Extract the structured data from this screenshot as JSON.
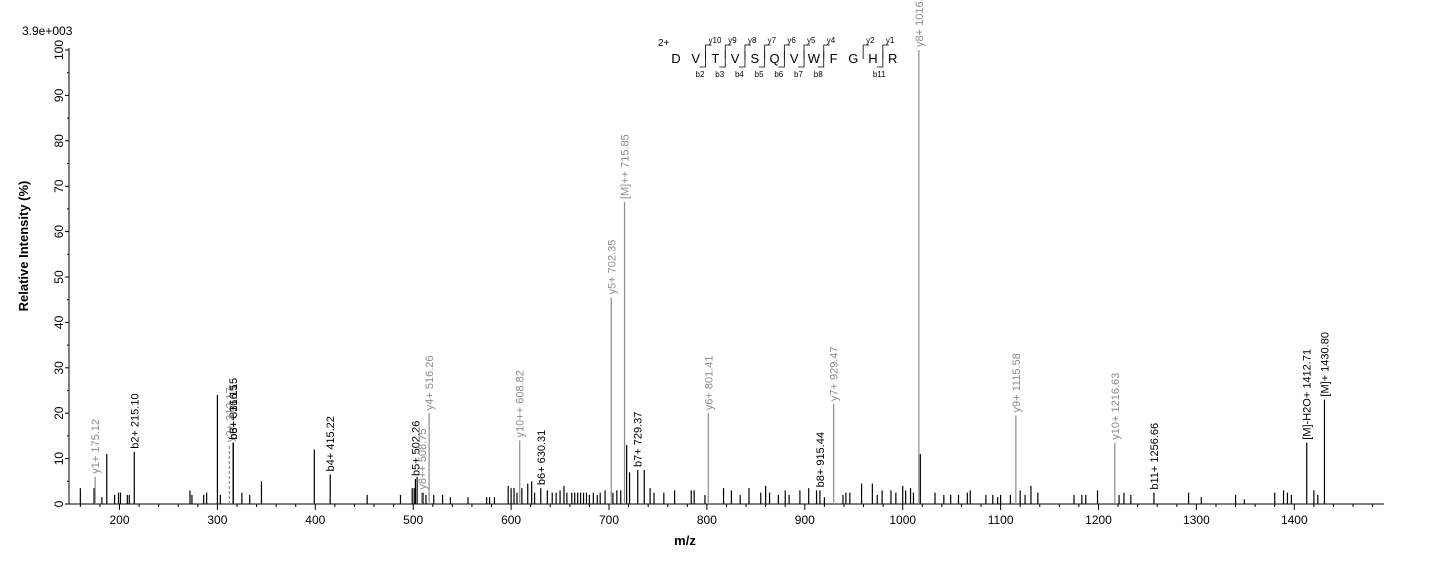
{
  "chart_data": {
    "type": "bar",
    "scale_label": "3.9e+003",
    "xlabel": "m/z",
    "ylabel": "Relative   Intensity (%)",
    "xlim": [
      155,
      1485
    ],
    "ylim": [
      0,
      100
    ],
    "x_ticks": [
      200,
      300,
      400,
      500,
      600,
      700,
      800,
      900,
      1000,
      1100,
      1200,
      1300,
      1400
    ],
    "y_ticks": [
      0,
      10,
      20,
      30,
      40,
      50,
      60,
      70,
      80,
      90,
      100
    ],
    "annotated_peaks": [
      {
        "x": 175.12,
        "y": 6.0,
        "label": "y1+ 175.12",
        "color": "#8c8c8c"
      },
      {
        "x": 215.1,
        "y": 11.5,
        "label": "b2+ 215.10",
        "color": "#000000"
      },
      {
        "x": 316.15,
        "y": 13.5,
        "label": "b3+ 316.15",
        "color": "#000000"
      },
      {
        "x": 312.17,
        "y": 13.0,
        "label": "y2+ 312.17...",
        "color": "#8c8c8c"
      },
      {
        "x": 316.15,
        "y": 13.5,
        "label": "b6++ 316.15",
        "color": "#000000"
      },
      {
        "x": 415.22,
        "y": 6.5,
        "label": "b4+ 415.22",
        "color": "#000000"
      },
      {
        "x": 502.26,
        "y": 5.5,
        "label": "b5+ 502.26",
        "color": "#000000"
      },
      {
        "x": 508.75,
        "y": 2.5,
        "label": "y8++ 508.75",
        "color": "#8c8c8c"
      },
      {
        "x": 516.26,
        "y": 20.0,
        "label": "y4+ 516.26",
        "color": "#8c8c8c"
      },
      {
        "x": 608.82,
        "y": 14.0,
        "label": "y10++ 608.82",
        "color": "#8c8c8c"
      },
      {
        "x": 630.31,
        "y": 3.5,
        "label": "b6+ 630.31",
        "color": "#000000"
      },
      {
        "x": 702.35,
        "y": 45.5,
        "label": "y5+ 702.35",
        "color": "#8c8c8c"
      },
      {
        "x": 715.85,
        "y": 66.5,
        "label": "[M]++ 715.85",
        "color": "#8c8c8c"
      },
      {
        "x": 729.37,
        "y": 7.5,
        "label": "b7+ 729.37",
        "color": "#000000"
      },
      {
        "x": 801.41,
        "y": 20.0,
        "label": "y6+ 801.41",
        "color": "#8c8c8c"
      },
      {
        "x": 915.44,
        "y": 3.0,
        "label": "b8+ 915.44",
        "color": "#000000"
      },
      {
        "x": 929.47,
        "y": 22.0,
        "label": "y7+ 929.47",
        "color": "#8c8c8c"
      },
      {
        "x": 1016.51,
        "y": 100.0,
        "label": "y8+ 1016.51",
        "color": "#8c8c8c"
      },
      {
        "x": 1115.58,
        "y": 19.5,
        "label": "y9+ 1115.58",
        "color": "#8c8c8c"
      },
      {
        "x": 1216.63,
        "y": 13.5,
        "label": "y10+ 1216.63",
        "color": "#8c8c8c"
      },
      {
        "x": 1256.66,
        "y": 2.5,
        "label": "b11+ 1256.66",
        "color": "#000000"
      },
      {
        "x": 1412.71,
        "y": 13.5,
        "label": "[M]-H2O+ 1412.71",
        "color": "#000000"
      },
      {
        "x": 1430.8,
        "y": 23.0,
        "label": "[M]+ 1430.80",
        "color": "#000000"
      }
    ],
    "unlabeled_peaks": [
      [
        160,
        3.5
      ],
      [
        174,
        3.5
      ],
      [
        182,
        1.5
      ],
      [
        187,
        11
      ],
      [
        195,
        2
      ],
      [
        199,
        2.5
      ],
      [
        201,
        2.5
      ],
      [
        208,
        2
      ],
      [
        210,
        2
      ],
      [
        272,
        3
      ],
      [
        274,
        2
      ],
      [
        286,
        2
      ],
      [
        289,
        2.5
      ],
      [
        300,
        24
      ],
      [
        303,
        2
      ],
      [
        325,
        2.5
      ],
      [
        333,
        2
      ],
      [
        345,
        5
      ],
      [
        399,
        12
      ],
      [
        453,
        2
      ],
      [
        487,
        2
      ],
      [
        499,
        3.5
      ],
      [
        501,
        3.5
      ],
      [
        504,
        6
      ],
      [
        510,
        2.5
      ],
      [
        513,
        2
      ],
      [
        521,
        2
      ],
      [
        530,
        2
      ],
      [
        538,
        1.5
      ],
      [
        556,
        1.5
      ],
      [
        575,
        1.5
      ],
      [
        578,
        1.5
      ],
      [
        583,
        1.5
      ],
      [
        597,
        4
      ],
      [
        600,
        3.5
      ],
      [
        603,
        3.5
      ],
      [
        606,
        2.5
      ],
      [
        611,
        3.5
      ],
      [
        617,
        4.5
      ],
      [
        621,
        5
      ],
      [
        624,
        2.5
      ],
      [
        637,
        3
      ],
      [
        642,
        2.5
      ],
      [
        646,
        2.5
      ],
      [
        650,
        3
      ],
      [
        654,
        4
      ],
      [
        657,
        2.5
      ],
      [
        662,
        2.5
      ],
      [
        665,
        2.5
      ],
      [
        668,
        2.5
      ],
      [
        671,
        2.5
      ],
      [
        674,
        2.5
      ],
      [
        677,
        2.5
      ],
      [
        680,
        2
      ],
      [
        684,
        2.5
      ],
      [
        688,
        2
      ],
      [
        691,
        2.5
      ],
      [
        696,
        3
      ],
      [
        704,
        2.5
      ],
      [
        708,
        3
      ],
      [
        712,
        3
      ],
      [
        718,
        13
      ],
      [
        721,
        7
      ],
      [
        736,
        7.5
      ],
      [
        742,
        3.5
      ],
      [
        746,
        2.5
      ],
      [
        756,
        2.5
      ],
      [
        767,
        3
      ],
      [
        784,
        3
      ],
      [
        787,
        3
      ],
      [
        798,
        2
      ],
      [
        817,
        3.5
      ],
      [
        825,
        3
      ],
      [
        834,
        2
      ],
      [
        843,
        3.5
      ],
      [
        855,
        2.5
      ],
      [
        860,
        4
      ],
      [
        864,
        2.5
      ],
      [
        873,
        2
      ],
      [
        880,
        3
      ],
      [
        884,
        2
      ],
      [
        895,
        3
      ],
      [
        904,
        3.5
      ],
      [
        912,
        3
      ],
      [
        920,
        1.5
      ],
      [
        939,
        2
      ],
      [
        942,
        2.5
      ],
      [
        946,
        2.5
      ],
      [
        958,
        4.5
      ],
      [
        969,
        4.5
      ],
      [
        974,
        2
      ],
      [
        979,
        3
      ],
      [
        988,
        3
      ],
      [
        993,
        2.5
      ],
      [
        1000,
        4
      ],
      [
        1003,
        3
      ],
      [
        1008,
        3.5
      ],
      [
        1011,
        2.5
      ],
      [
        1018,
        11
      ],
      [
        1033,
        2.5
      ],
      [
        1042,
        2
      ],
      [
        1049,
        2
      ],
      [
        1057,
        2
      ],
      [
        1066,
        2.5
      ],
      [
        1069,
        3
      ],
      [
        1085,
        2
      ],
      [
        1092,
        2
      ],
      [
        1097,
        1.5
      ],
      [
        1100,
        2
      ],
      [
        1110,
        2
      ],
      [
        1120,
        3
      ],
      [
        1125,
        2
      ],
      [
        1131,
        4
      ],
      [
        1138,
        2.5
      ],
      [
        1175,
        2
      ],
      [
        1183,
        2
      ],
      [
        1187,
        2
      ],
      [
        1199,
        3
      ],
      [
        1221,
        2
      ],
      [
        1226,
        2.5
      ],
      [
        1233,
        2
      ],
      [
        1292,
        2.5
      ],
      [
        1305,
        1.5
      ],
      [
        1340,
        2
      ],
      [
        1349,
        1
      ],
      [
        1380,
        2.5
      ],
      [
        1389,
        3
      ],
      [
        1393,
        2.5
      ],
      [
        1397,
        2
      ],
      [
        1420,
        3
      ],
      [
        1424,
        2
      ]
    ],
    "sequence": {
      "charge": "2+",
      "residues": [
        "D",
        "V",
        "T",
        "V",
        "S",
        "Q",
        "V",
        "W",
        "F",
        "G",
        "H",
        "R"
      ],
      "y_ions": [
        {
          "after_index": 1,
          "label": "y10"
        },
        {
          "after_index": 2,
          "label": "y9"
        },
        {
          "after_index": 3,
          "label": "y8"
        },
        {
          "after_index": 4,
          "label": "y7"
        },
        {
          "after_index": 5,
          "label": "y6"
        },
        {
          "after_index": 6,
          "label": "y5"
        },
        {
          "after_index": 7,
          "label": "y4"
        },
        {
          "after_index": 9,
          "label": "y2"
        },
        {
          "after_index": 10,
          "label": "y1"
        }
      ],
      "b_ions": [
        {
          "after_index": 1,
          "label": "b2"
        },
        {
          "after_index": 2,
          "label": "b3"
        },
        {
          "after_index": 3,
          "label": "b4"
        },
        {
          "after_index": 4,
          "label": "b5"
        },
        {
          "after_index": 5,
          "label": "b6"
        },
        {
          "after_index": 6,
          "label": "b7"
        },
        {
          "after_index": 7,
          "label": "b8"
        },
        {
          "after_index": 10,
          "label": "b11"
        }
      ]
    }
  }
}
